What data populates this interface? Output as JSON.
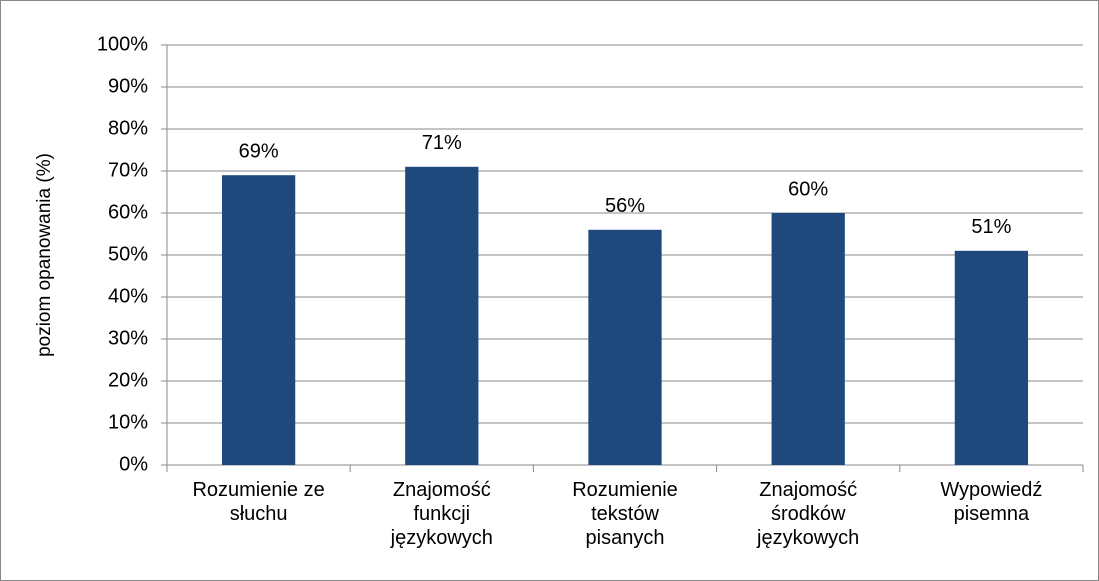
{
  "chart_data": {
    "type": "bar",
    "y_axis_label": "poziom opanowania (%)",
    "categories": [
      "Rozumienie ze słuchu",
      "Znajomość funkcji językowych",
      "Rozumienie tekstów pisanych",
      "Znajomość środków językowych",
      "Wypowiedź pisemna"
    ],
    "values": [
      69,
      71,
      56,
      60,
      51
    ],
    "value_labels": [
      "69%",
      "71%",
      "56%",
      "60%",
      "51%"
    ],
    "color": "#1f497d",
    "ylim": [
      0,
      100
    ],
    "yticks": [
      {
        "value": 0,
        "label": "0%"
      },
      {
        "value": 10,
        "label": "10%"
      },
      {
        "value": 20,
        "label": "20%"
      },
      {
        "value": 30,
        "label": "30%"
      },
      {
        "value": 40,
        "label": "40%"
      },
      {
        "value": 50,
        "label": "50%"
      },
      {
        "value": 60,
        "label": "60%"
      },
      {
        "value": 70,
        "label": "70%"
      },
      {
        "value": 80,
        "label": "80%"
      },
      {
        "value": 90,
        "label": "90%"
      },
      {
        "value": 100,
        "label": "100%"
      }
    ],
    "grid": true
  }
}
